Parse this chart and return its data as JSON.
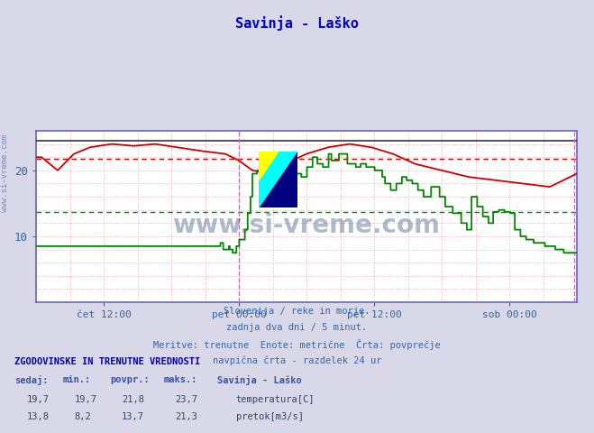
{
  "title": "Savinja - Laško",
  "title_color": "#0000cc",
  "bg_color": "#d8d8e8",
  "plot_bg_color": "#ffffff",
  "grid_color": "#ddddee",
  "grid_color2": "#ffaaaa",
  "axis_color": "#6666bb",
  "ylabel_color": "#336699",
  "xlabel_color": "#336699",
  "xticklabels": [
    "čet 12:00",
    "pet 00:00",
    "pet 12:00",
    "sob 00:00"
  ],
  "xtick_positions": [
    0.125,
    0.375,
    0.625,
    0.875
  ],
  "yticks": [
    10,
    20
  ],
  "ymin": 0,
  "ymax": 26,
  "temp_avg": 21.8,
  "flow_avg": 13.7,
  "temp_color": "#cc0000",
  "flow_color": "#008800",
  "black_line_value": 24.5,
  "vline_color": "#ff44ff",
  "vline_positions": [
    0.375,
    0.995
  ],
  "watermark_text": "www.si-vreme.com",
  "watermark_color": "#1a3a6b",
  "watermark_alpha": 0.35,
  "subtitle_lines": [
    "Slovenija / reke in morje.",
    "zadnja dva dni / 5 minut.",
    "Meritve: trenutne  Enote: metrične  Črta: povprečje",
    "navpična črta - razdelek 24 ur"
  ],
  "subtitle_color": "#3366aa",
  "table_header": "ZGODOVINSKE IN TRENUTNE VREDNOSTI",
  "table_cols": [
    "sedaj:",
    "min.:",
    "povpr.:",
    "maks.:",
    "Savinja - Laško"
  ],
  "table_row1": [
    "19,7",
    "19,7",
    "21,8",
    "23,7",
    "temperatura[C]"
  ],
  "table_row2": [
    "13,8",
    "8,2",
    "13,7",
    "21,3",
    "pretok[m3/s]"
  ],
  "n_points": 576
}
